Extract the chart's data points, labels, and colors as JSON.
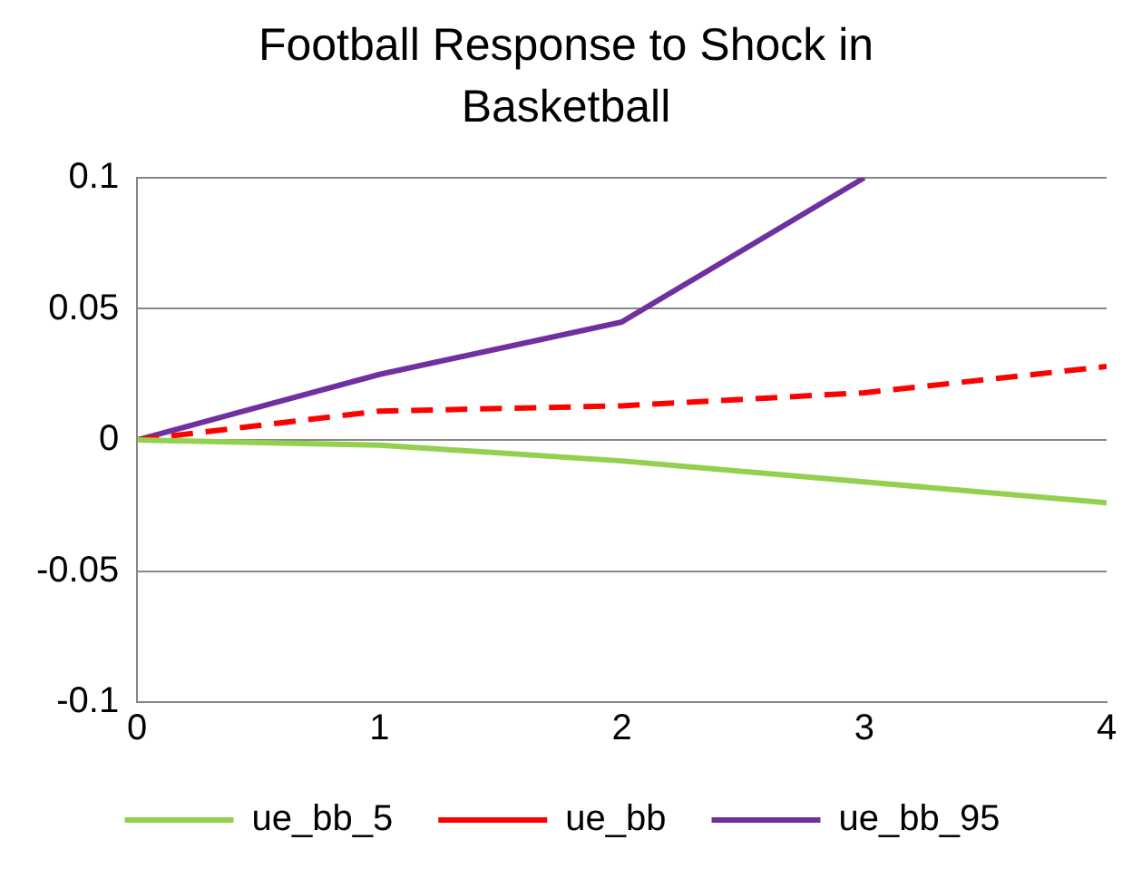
{
  "chart_data": {
    "type": "line",
    "title": "Football Response to Shock in Basketball",
    "x": [
      0,
      1,
      2,
      3,
      4
    ],
    "xlim": [
      0,
      4
    ],
    "xticks": [
      0,
      1,
      2,
      3,
      4
    ],
    "ylim": [
      -0.1,
      0.1
    ],
    "yticks": [
      {
        "value": -0.1,
        "label": "-0.1"
      },
      -0.05,
      0,
      0.05,
      {
        "value": 0.1,
        "label": "0.1"
      }
    ],
    "grid": "y",
    "legend": "bottom",
    "marker": "none",
    "series": [
      {
        "name": "ue_bb_5",
        "color": "#92d050",
        "values": [
          0,
          -0.002,
          -0.008,
          -0.016,
          -0.024
        ]
      },
      {
        "name": "ue_bb",
        "color": "#ff0000",
        "line_style": "dashed",
        "values": [
          0,
          0.011,
          0.013,
          0.018,
          0.028
        ]
      },
      {
        "name": "ue_bb_95",
        "color": "#7030a0",
        "values": [
          0,
          0.025,
          0.045,
          0.1,
          null
        ]
      }
    ]
  }
}
